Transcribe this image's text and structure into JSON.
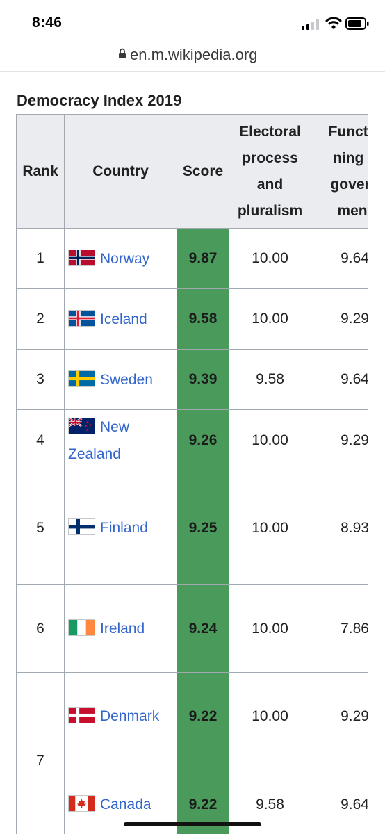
{
  "status_bar": {
    "time": "8:46"
  },
  "browser": {
    "url": "en.m.wikipedia.org"
  },
  "table": {
    "caption": "Democracy Index 2019",
    "headers": {
      "rank": "Rank",
      "country": "Country",
      "score": "Score",
      "electoral": [
        "Electoral",
        "process",
        "and",
        "pluralism"
      ],
      "functioning": [
        "Functio",
        "ning o",
        "govern",
        "ment"
      ]
    },
    "rows": [
      {
        "rank": "1",
        "country": "Norway",
        "score": "9.87",
        "electoral": "10.00",
        "functioning": "9.64",
        "flag": "flag-norway-icon"
      },
      {
        "rank": "2",
        "country": "Iceland",
        "score": "9.58",
        "electoral": "10.00",
        "functioning": "9.29",
        "flag": "flag-iceland-icon"
      },
      {
        "rank": "3",
        "country": "Sweden",
        "score": "9.39",
        "electoral": "9.58",
        "functioning": "9.64",
        "flag": "flag-sweden-icon"
      },
      {
        "rank": "4",
        "country": "New Zealand",
        "score": "9.26",
        "electoral": "10.00",
        "functioning": "9.29",
        "flag": "flag-new-zealand-icon"
      },
      {
        "rank": "5",
        "country": "Finland",
        "score": "9.25",
        "electoral": "10.00",
        "functioning": "8.93",
        "flag": "flag-finland-icon"
      },
      {
        "rank": "6",
        "country": "Ireland",
        "score": "9.24",
        "electoral": "10.00",
        "functioning": "7.86",
        "flag": "flag-ireland-icon"
      },
      {
        "rank": "7",
        "country": "Denmark",
        "score": "9.22",
        "electoral": "10.00",
        "functioning": "9.29",
        "flag": "flag-denmark-icon"
      },
      {
        "rank": "",
        "country": "Canada",
        "score": "9.22",
        "electoral": "9.58",
        "functioning": "9.64",
        "flag": "flag-canada-icon"
      }
    ]
  },
  "colors": {
    "score_cell": "#4a9a5b",
    "link": "#3366cc",
    "header_bg": "#eaecf0",
    "border": "#a2a9b1"
  }
}
